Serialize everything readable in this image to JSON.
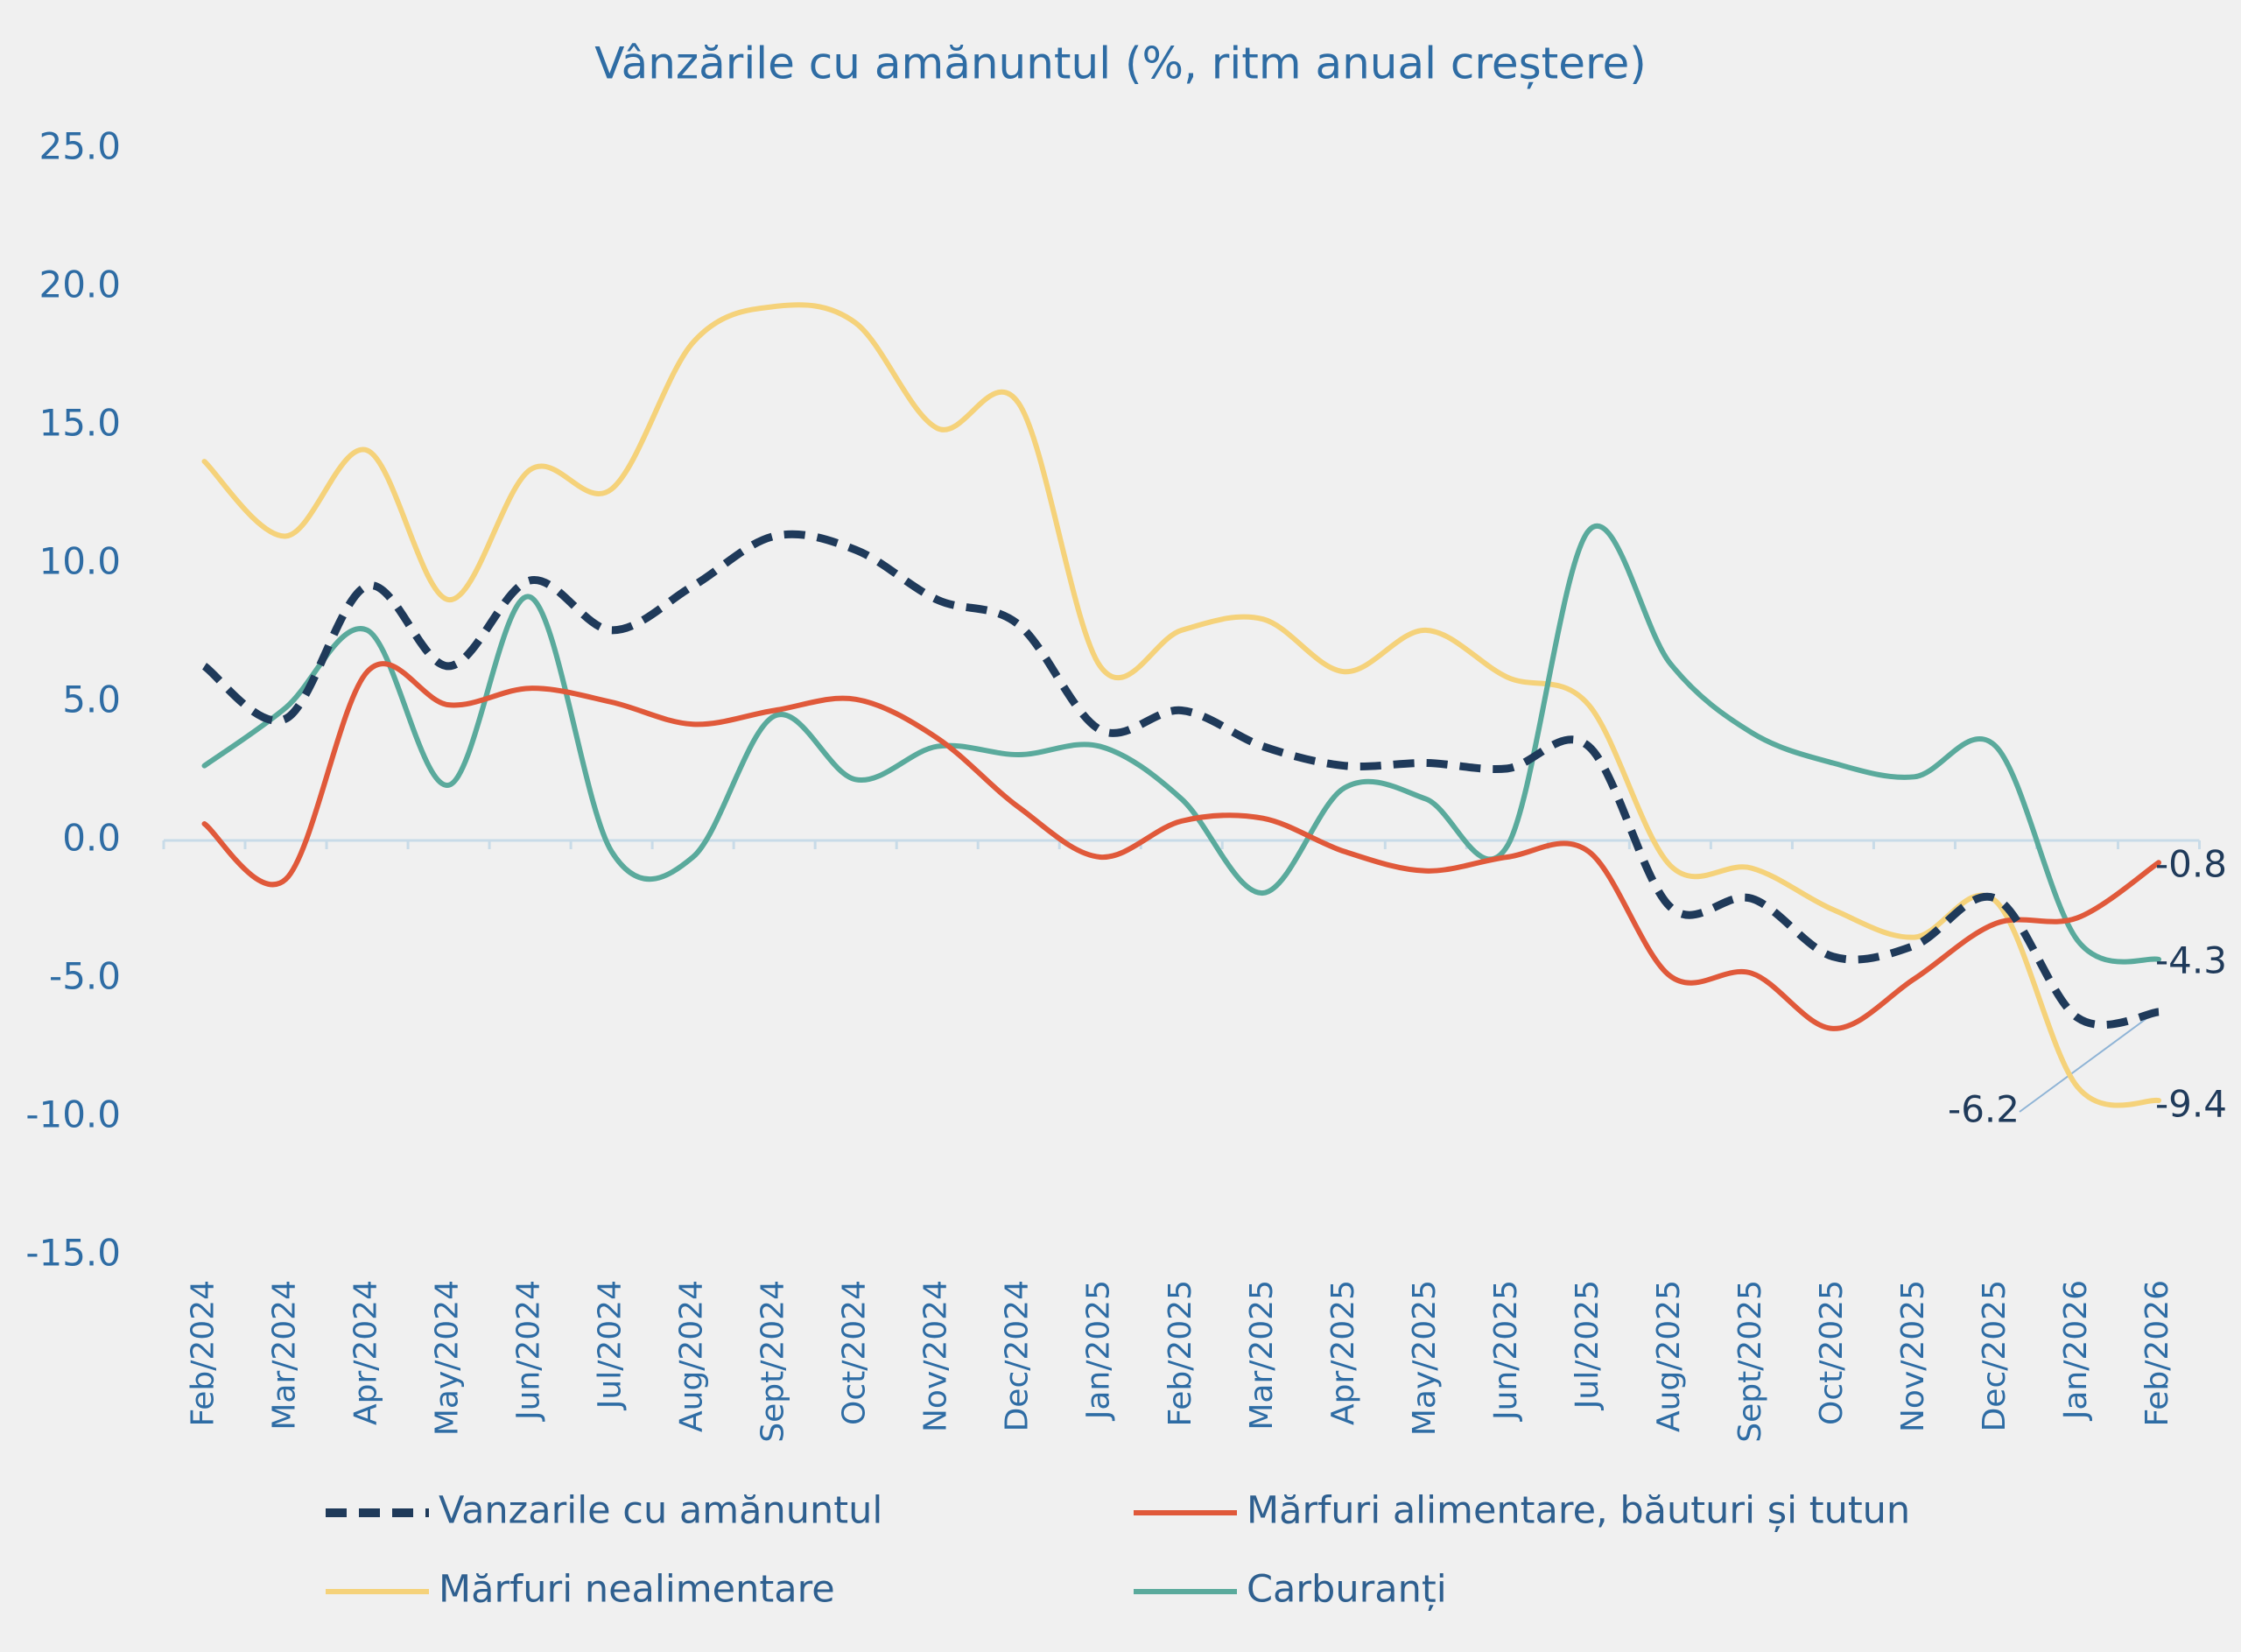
{
  "chart_data": {
    "type": "line",
    "title": "Vânzările cu amănuntul (%, ritm anual creștere)",
    "categories": [
      "Feb/2024",
      "Mar/2024",
      "Apr/2024",
      "May/2024",
      "Jun/2024",
      "Jul/2024",
      "Aug/2024",
      "Sept/2024",
      "Oct/2024",
      "Nov/2024",
      "Dec/2024",
      "Jan/2025",
      "Feb/2025",
      "Mar/2025",
      "Apr/2025",
      "May/2025",
      "Jun/2025",
      "Jul/2025",
      "Aug/2025",
      "Sept/2025",
      "Oct/2025",
      "Nov/2025",
      "Dec/2025",
      "Jan/2026",
      "Feb/2026"
    ],
    "series": [
      {
        "name": "Vanzarile cu amănuntul",
        "color": "#1f3a5a",
        "dashed": true,
        "values": [
          6.3,
          4.4,
          9.2,
          6.3,
          9.4,
          7.6,
          9.2,
          11.0,
          10.5,
          8.7,
          7.8,
          4.0,
          4.7,
          3.4,
          2.7,
          2.8,
          2.6,
          3.4,
          -2.4,
          -2.1,
          -4.2,
          -3.8,
          -2.1,
          -6.4,
          -6.2
        ]
      },
      {
        "name": "Mărfuri alimentare, băuturi și tutun",
        "color": "#e0593a",
        "values": [
          0.6,
          -1.4,
          6.1,
          4.9,
          5.5,
          5.0,
          4.2,
          4.7,
          5.1,
          3.7,
          1.2,
          -0.6,
          0.7,
          0.8,
          -0.4,
          -1.1,
          -0.6,
          -0.4,
          -4.9,
          -4.8,
          -6.8,
          -5.0,
          -3.0,
          -2.8,
          -0.8
        ]
      },
      {
        "name": "Mărfuri nealimentare",
        "color": "#f5d27a",
        "values": [
          13.7,
          11.0,
          14.1,
          8.7,
          13.4,
          12.7,
          18.0,
          19.3,
          18.7,
          14.9,
          15.8,
          6.3,
          7.6,
          8.0,
          6.1,
          7.6,
          5.9,
          4.9,
          -0.9,
          -1.0,
          -2.5,
          -3.5,
          -2.2,
          -8.9,
          -9.4
        ]
      },
      {
        "name": "Carburanți",
        "color": "#5aaa9c",
        "values": [
          2.7,
          4.8,
          7.6,
          2.0,
          8.8,
          -0.4,
          -0.6,
          4.5,
          2.2,
          3.4,
          3.1,
          3.4,
          1.5,
          -1.9,
          1.9,
          1.5,
          -0.2,
          11.2,
          6.4,
          3.9,
          2.8,
          2.3,
          3.4,
          -3.6,
          -4.3
        ]
      }
    ],
    "ylim": [
      -15,
      25
    ],
    "yticks": [
      {
        "value": -15,
        "label": "-15.0"
      },
      {
        "value": -10,
        "label": "-10.0"
      },
      {
        "value": -5,
        "label": "-5.0"
      },
      {
        "value": 0,
        "label": "0.0"
      },
      {
        "value": 5,
        "label": "5.0"
      },
      {
        "value": 10,
        "label": "10.0"
      },
      {
        "value": 15,
        "label": "15.0"
      },
      {
        "value": 20,
        "label": "20.0"
      },
      {
        "value": 25,
        "label": "25.0"
      }
    ],
    "grid": false
  }
}
